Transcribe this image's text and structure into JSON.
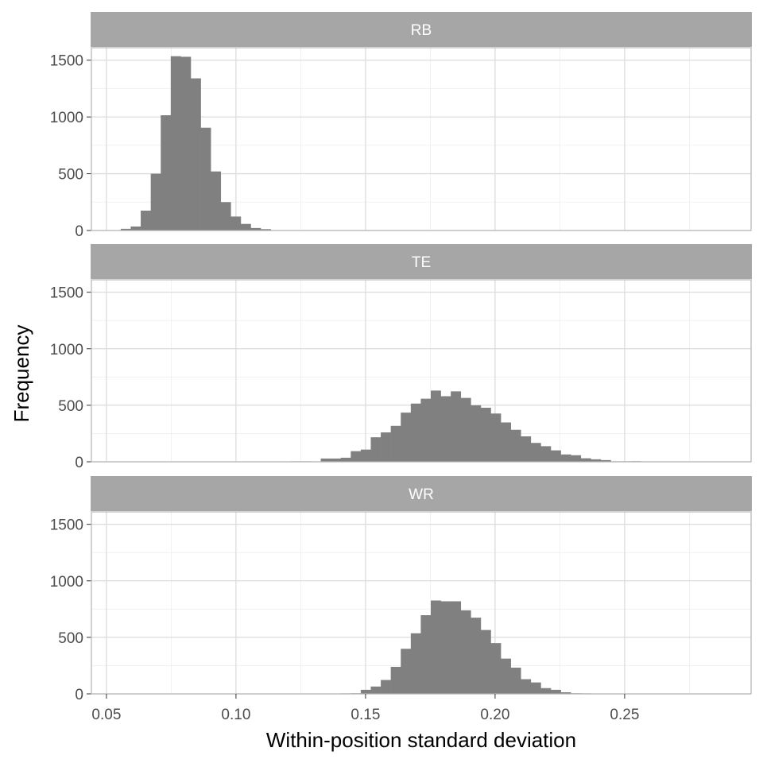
{
  "chart_data": {
    "type": "bar",
    "subtype": "faceted-histogram",
    "xlabel": "Within-position standard deviation",
    "ylabel": "Frequency",
    "xlim": [
      0.0442,
      0.2988
    ],
    "ylim": [
      0,
      1610
    ],
    "x_ticks": [
      0.05,
      0.1,
      0.15,
      0.2,
      0.25
    ],
    "x_tick_labels": [
      "0.05",
      "0.10",
      "0.15",
      "0.20",
      "0.25"
    ],
    "y_ticks": [
      0,
      500,
      1000,
      1500
    ],
    "y_tick_labels": [
      "0",
      "500",
      "1000",
      "1500"
    ],
    "grid": true,
    "bin_width": 0.00386,
    "colors": {
      "bar": "#808080",
      "strip": "#a6a6a6",
      "strip_text": "#ffffff",
      "grid_major": "#dcdcdc",
      "grid_minor": "#efefef",
      "border": "#b3b3b3",
      "axis_text": "#4d4d4d"
    },
    "panels": [
      {
        "label": "RB",
        "bin_start": 0.05552,
        "counts": [
          15,
          35,
          175,
          500,
          1015,
          1535,
          1530,
          1340,
          905,
          520,
          250,
          123,
          58,
          22,
          12
        ]
      },
      {
        "label": "TE",
        "bin_start": 0.12114,
        "counts": [
          5,
          5,
          3,
          29,
          29,
          36,
          94,
          108,
          217,
          260,
          318,
          435,
          515,
          558,
          630,
          580,
          623,
          565,
          500,
          478,
          427,
          348,
          283,
          225,
          167,
          138,
          101,
          65,
          58,
          31,
          22,
          15,
          5,
          5,
          7,
          1,
          3,
          2,
          1,
          1,
          1,
          1,
          2
        ]
      },
      {
        "label": "WR",
        "bin_start": 0.12886,
        "counts": [
          2,
          2,
          3,
          5,
          7,
          36,
          65,
          123,
          239,
          399,
          536,
          696,
          826,
          819,
          819,
          739,
          674,
          565,
          449,
          312,
          232,
          130,
          101,
          51,
          36,
          14,
          7,
          5,
          3,
          2,
          1,
          0,
          0,
          0,
          2
        ]
      }
    ]
  }
}
